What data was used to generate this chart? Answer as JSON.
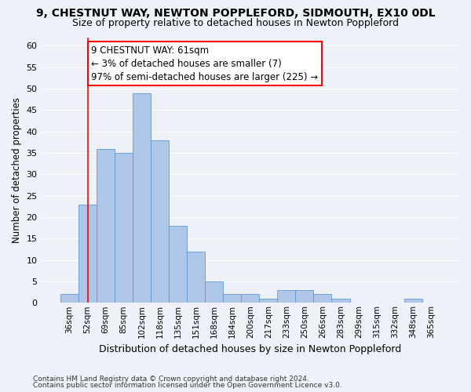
{
  "title": "9, CHESTNUT WAY, NEWTON POPPLEFORD, SIDMOUTH, EX10 0DL",
  "subtitle": "Size of property relative to detached houses in Newton Poppleford",
  "xlabel": "Distribution of detached houses by size in Newton Poppleford",
  "ylabel": "Number of detached properties",
  "footnote1": "Contains HM Land Registry data © Crown copyright and database right 2024.",
  "footnote2": "Contains public sector information licensed under the Open Government Licence v3.0.",
  "categories": [
    "36sqm",
    "52sqm",
    "69sqm",
    "85sqm",
    "102sqm",
    "118sqm",
    "135sqm",
    "151sqm",
    "168sqm",
    "184sqm",
    "200sqm",
    "217sqm",
    "233sqm",
    "250sqm",
    "266sqm",
    "283sqm",
    "299sqm",
    "315sqm",
    "332sqm",
    "348sqm",
    "365sqm"
  ],
  "values": [
    2,
    23,
    36,
    35,
    49,
    38,
    18,
    12,
    5,
    2,
    2,
    1,
    3,
    3,
    2,
    1,
    0,
    0,
    0,
    1,
    0
  ],
  "bar_color": "#aec6e8",
  "bar_edge_color": "#5b9bd5",
  "bar_width": 1.0,
  "ylim": [
    0,
    62
  ],
  "yticks": [
    0,
    5,
    10,
    15,
    20,
    25,
    30,
    35,
    40,
    45,
    50,
    55,
    60
  ],
  "annotation_box_text": "9 CHESTNUT WAY: 61sqm\n← 3% of detached houses are smaller (7)\n97% of semi-detached houses are larger (225) →",
  "annotation_box_color": "white",
  "annotation_box_edge_color": "red",
  "annotation_line_color": "red",
  "background_color": "#eef2f8",
  "grid_color": "white"
}
